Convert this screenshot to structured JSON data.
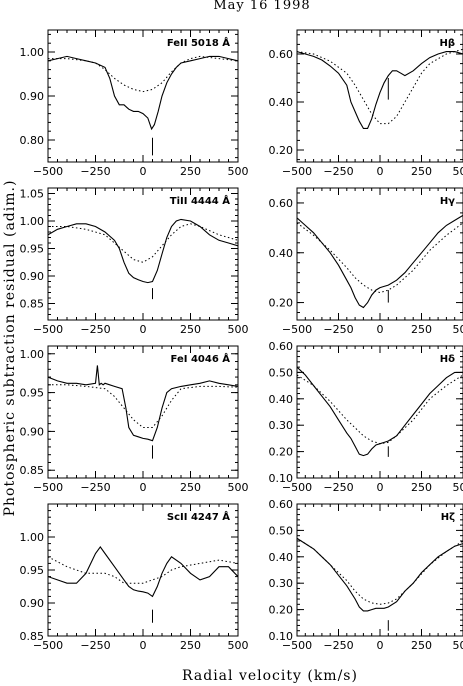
{
  "title": "May 16 1998",
  "xlabel": "Radial velocity (km/s)",
  "ylabel": "Photospheric subtraction residual (adim.)",
  "chart_data": [
    {
      "type": "line",
      "label": "FeII 5018 Å",
      "xlim": [
        -500,
        500
      ],
      "ylim": [
        0.75,
        1.05
      ],
      "yticks": [
        "0.80",
        "0.90",
        "1.00"
      ],
      "ytick_values": [
        0.8,
        0.9,
        1.0
      ],
      "xticks": [
        "−500",
        "−250",
        "0",
        "250",
        "500"
      ],
      "marker_x": 50,
      "marker_y": [
        0.765,
        0.805
      ],
      "series": [
        {
          "style": "solid",
          "x": [
            -500,
            -450,
            -400,
            -350,
            -300,
            -250,
            -200,
            -175,
            -150,
            -125,
            -100,
            -75,
            -50,
            -25,
            0,
            25,
            45,
            60,
            80,
            100,
            125,
            150,
            175,
            200,
            250,
            300,
            350,
            400,
            450,
            500
          ],
          "y": [
            0.98,
            0.985,
            0.99,
            0.985,
            0.98,
            0.975,
            0.965,
            0.94,
            0.9,
            0.88,
            0.88,
            0.87,
            0.865,
            0.865,
            0.86,
            0.85,
            0.825,
            0.835,
            0.865,
            0.9,
            0.93,
            0.95,
            0.965,
            0.975,
            0.98,
            0.985,
            0.99,
            0.99,
            0.985,
            0.98
          ]
        },
        {
          "style": "dotted",
          "x": [
            -500,
            -400,
            -300,
            -250,
            -200,
            -150,
            -100,
            -50,
            0,
            50,
            100,
            150,
            200,
            250,
            300,
            400,
            500
          ],
          "y": [
            0.985,
            0.985,
            0.98,
            0.975,
            0.96,
            0.94,
            0.925,
            0.915,
            0.91,
            0.915,
            0.93,
            0.955,
            0.975,
            0.985,
            0.99,
            0.985,
            0.98
          ]
        }
      ]
    },
    {
      "type": "line",
      "label": "Hβ",
      "xlim": [
        -500,
        500
      ],
      "ylim": [
        0.15,
        0.7
      ],
      "yticks": [
        "0.20",
        "0.40",
        "0.60"
      ],
      "ytick_values": [
        0.2,
        0.4,
        0.6
      ],
      "xticks": [
        "−500",
        "−250",
        "0",
        "250",
        "500"
      ],
      "marker_x": 50,
      "marker_y": [
        0.41,
        0.5
      ],
      "series": [
        {
          "style": "solid",
          "x": [
            -500,
            -450,
            -400,
            -350,
            -300,
            -250,
            -200,
            -175,
            -150,
            -125,
            -100,
            -75,
            -50,
            -25,
            0,
            25,
            50,
            75,
            100,
            125,
            150,
            200,
            250,
            300,
            350,
            400,
            450,
            500
          ],
          "y": [
            0.61,
            0.6,
            0.59,
            0.575,
            0.55,
            0.52,
            0.47,
            0.4,
            0.36,
            0.32,
            0.29,
            0.29,
            0.33,
            0.39,
            0.44,
            0.48,
            0.51,
            0.53,
            0.53,
            0.52,
            0.51,
            0.53,
            0.56,
            0.585,
            0.6,
            0.61,
            0.61,
            0.6
          ]
        },
        {
          "style": "dotted",
          "x": [
            -500,
            -400,
            -300,
            -200,
            -150,
            -100,
            -50,
            0,
            50,
            100,
            150,
            200,
            250,
            300,
            400,
            500
          ],
          "y": [
            0.61,
            0.6,
            0.57,
            0.52,
            0.47,
            0.41,
            0.35,
            0.31,
            0.31,
            0.34,
            0.4,
            0.46,
            0.52,
            0.56,
            0.6,
            0.62
          ]
        }
      ]
    },
    {
      "type": "line",
      "label": "TiII 4444 Å",
      "xlim": [
        -500,
        500
      ],
      "ylim": [
        0.82,
        1.06
      ],
      "yticks": [
        "0.85",
        "0.90",
        "0.95",
        "1.00",
        "1.05"
      ],
      "ytick_values": [
        0.85,
        0.9,
        0.95,
        1.0,
        1.05
      ],
      "xticks": [
        "−500",
        "−250",
        "0",
        "250",
        "500"
      ],
      "marker_x": 50,
      "marker_y": [
        0.858,
        0.878
      ],
      "series": [
        {
          "style": "solid",
          "x": [
            -500,
            -450,
            -400,
            -350,
            -300,
            -250,
            -200,
            -150,
            -125,
            -100,
            -75,
            -50,
            -25,
            0,
            25,
            50,
            75,
            100,
            125,
            150,
            175,
            200,
            250,
            300,
            350,
            400,
            450,
            500
          ],
          "y": [
            0.975,
            0.985,
            0.99,
            0.995,
            0.995,
            0.99,
            0.98,
            0.965,
            0.95,
            0.925,
            0.905,
            0.897,
            0.893,
            0.89,
            0.888,
            0.89,
            0.91,
            0.94,
            0.97,
            0.99,
            1.0,
            1.003,
            1.0,
            0.99,
            0.975,
            0.965,
            0.96,
            0.955
          ]
        },
        {
          "style": "dotted",
          "x": [
            -500,
            -400,
            -300,
            -200,
            -150,
            -100,
            -50,
            0,
            50,
            100,
            150,
            200,
            250,
            300,
            400,
            500
          ],
          "y": [
            0.99,
            0.99,
            0.985,
            0.975,
            0.96,
            0.945,
            0.93,
            0.925,
            0.935,
            0.955,
            0.975,
            0.99,
            0.995,
            0.99,
            0.975,
            0.965
          ]
        }
      ]
    },
    {
      "type": "line",
      "label": "Hγ",
      "xlim": [
        -500,
        500
      ],
      "ylim": [
        0.13,
        0.66
      ],
      "yticks": [
        "0.20",
        "0.40",
        "0.60"
      ],
      "ytick_values": [
        0.2,
        0.4,
        0.6
      ],
      "xticks": [
        "−500",
        "−250",
        "0",
        "250",
        "500"
      ],
      "marker_x": 50,
      "marker_y": [
        0.2,
        0.25
      ],
      "series": [
        {
          "style": "solid",
          "x": [
            -500,
            -450,
            -400,
            -350,
            -300,
            -250,
            -200,
            -175,
            -150,
            -125,
            -100,
            -75,
            -50,
            -25,
            0,
            25,
            50,
            100,
            150,
            200,
            250,
            300,
            350,
            400,
            450,
            500
          ],
          "y": [
            0.54,
            0.51,
            0.48,
            0.44,
            0.4,
            0.35,
            0.29,
            0.26,
            0.22,
            0.19,
            0.18,
            0.2,
            0.23,
            0.25,
            0.26,
            0.265,
            0.27,
            0.29,
            0.32,
            0.36,
            0.4,
            0.44,
            0.48,
            0.51,
            0.53,
            0.55
          ]
        },
        {
          "style": "dotted",
          "x": [
            -500,
            -400,
            -300,
            -200,
            -150,
            -100,
            -50,
            0,
            50,
            100,
            200,
            300,
            400,
            500
          ],
          "y": [
            0.52,
            0.47,
            0.41,
            0.34,
            0.3,
            0.27,
            0.25,
            0.24,
            0.25,
            0.27,
            0.33,
            0.41,
            0.47,
            0.52
          ]
        }
      ]
    },
    {
      "type": "line",
      "label": "FeI 4046 Å",
      "xlim": [
        -500,
        500
      ],
      "ylim": [
        0.84,
        1.01
      ],
      "yticks": [
        "0.85",
        "0.90",
        "0.95",
        "1.00"
      ],
      "ytick_values": [
        0.85,
        0.9,
        0.95,
        1.0
      ],
      "xticks": [
        "−500",
        "−250",
        "0",
        "250",
        "500"
      ],
      "marker_x": 50,
      "marker_y": [
        0.865,
        0.882
      ],
      "series": [
        {
          "style": "solid",
          "x": [
            -500,
            -450,
            -400,
            -350,
            -300,
            -250,
            -240,
            -230,
            -220,
            -210,
            -200,
            -150,
            -110,
            -90,
            -75,
            -50,
            -25,
            0,
            25,
            50,
            75,
            100,
            125,
            150,
            200,
            250,
            300,
            350,
            400,
            450,
            500
          ],
          "y": [
            0.97,
            0.965,
            0.962,
            0.962,
            0.96,
            0.962,
            0.985,
            0.96,
            0.962,
            0.96,
            0.962,
            0.958,
            0.955,
            0.93,
            0.905,
            0.895,
            0.893,
            0.891,
            0.89,
            0.888,
            0.905,
            0.93,
            0.95,
            0.955,
            0.958,
            0.96,
            0.962,
            0.965,
            0.962,
            0.96,
            0.958
          ]
        },
        {
          "style": "dotted",
          "x": [
            -500,
            -400,
            -300,
            -200,
            -150,
            -100,
            -50,
            0,
            50,
            100,
            150,
            200,
            300,
            400,
            500
          ],
          "y": [
            0.96,
            0.96,
            0.958,
            0.955,
            0.945,
            0.93,
            0.915,
            0.905,
            0.905,
            0.92,
            0.94,
            0.955,
            0.958,
            0.958,
            0.957
          ]
        }
      ]
    },
    {
      "type": "line",
      "label": "Hδ",
      "xlim": [
        -500,
        500
      ],
      "ylim": [
        0.1,
        0.6
      ],
      "yticks": [
        "0.10",
        "0.20",
        "0.30",
        "0.40",
        "0.50",
        "0.60"
      ],
      "ytick_values": [
        0.1,
        0.2,
        0.3,
        0.4,
        0.5,
        0.6
      ],
      "xticks": [
        "−500",
        "−250",
        "0",
        "250",
        "500"
      ],
      "marker_x": 50,
      "marker_y": [
        0.18,
        0.22
      ],
      "series": [
        {
          "style": "solid",
          "x": [
            -500,
            -450,
            -400,
            -350,
            -300,
            -250,
            -200,
            -175,
            -150,
            -125,
            -100,
            -75,
            -50,
            -25,
            0,
            25,
            50,
            100,
            150,
            200,
            250,
            300,
            350,
            400,
            450,
            500
          ],
          "y": [
            0.52,
            0.49,
            0.45,
            0.41,
            0.37,
            0.32,
            0.27,
            0.25,
            0.22,
            0.19,
            0.185,
            0.19,
            0.21,
            0.225,
            0.23,
            0.235,
            0.24,
            0.26,
            0.3,
            0.34,
            0.38,
            0.42,
            0.45,
            0.48,
            0.5,
            0.5
          ]
        },
        {
          "style": "dotted",
          "x": [
            -500,
            -400,
            -300,
            -200,
            -150,
            -100,
            -50,
            0,
            50,
            100,
            200,
            300,
            400,
            500
          ],
          "y": [
            0.49,
            0.45,
            0.39,
            0.32,
            0.29,
            0.26,
            0.24,
            0.23,
            0.235,
            0.26,
            0.32,
            0.4,
            0.45,
            0.49
          ]
        }
      ]
    },
    {
      "type": "line",
      "label": "ScII 4247 Å",
      "xlim": [
        -500,
        500
      ],
      "ylim": [
        0.85,
        1.05
      ],
      "yticks": [
        "0.85",
        "0.90",
        "0.95",
        "1.00"
      ],
      "ytick_values": [
        0.85,
        0.9,
        0.95,
        1.0
      ],
      "xticks": [
        "−500",
        "−250",
        "0",
        "250",
        "500"
      ],
      "marker_x": 50,
      "marker_y": [
        0.87,
        0.89
      ],
      "series": [
        {
          "style": "solid",
          "x": [
            -500,
            -450,
            -400,
            -350,
            -300,
            -250,
            -225,
            -200,
            -150,
            -100,
            -75,
            -50,
            -25,
            0,
            25,
            50,
            75,
            100,
            125,
            150,
            200,
            250,
            300,
            350,
            400,
            450,
            500
          ],
          "y": [
            0.94,
            0.935,
            0.93,
            0.93,
            0.945,
            0.975,
            0.985,
            0.975,
            0.955,
            0.935,
            0.925,
            0.92,
            0.918,
            0.917,
            0.915,
            0.91,
            0.925,
            0.945,
            0.96,
            0.97,
            0.96,
            0.945,
            0.935,
            0.94,
            0.955,
            0.955,
            0.94
          ]
        },
        {
          "style": "dotted",
          "x": [
            -500,
            -400,
            -300,
            -250,
            -200,
            -150,
            -100,
            -50,
            0,
            50,
            100,
            150,
            200,
            300,
            400,
            500
          ],
          "y": [
            0.97,
            0.955,
            0.945,
            0.945,
            0.945,
            0.94,
            0.93,
            0.93,
            0.93,
            0.935,
            0.94,
            0.95,
            0.955,
            0.96,
            0.965,
            0.96
          ]
        }
      ]
    },
    {
      "type": "line",
      "label": "Hζ",
      "xlim": [
        -500,
        500
      ],
      "ylim": [
        0.1,
        0.6
      ],
      "yticks": [
        "0.10",
        "0.20",
        "0.30",
        "0.40",
        "0.50",
        "0.60"
      ],
      "ytick_values": [
        0.1,
        0.2,
        0.3,
        0.4,
        0.5,
        0.6
      ],
      "xticks": [
        "−500",
        "−250",
        "0",
        "250",
        "500"
      ],
      "marker_x": 50,
      "marker_y": [
        0.12,
        0.16
      ],
      "series": [
        {
          "style": "solid",
          "x": [
            -500,
            -450,
            -400,
            -350,
            -300,
            -250,
            -200,
            -150,
            -125,
            -100,
            -75,
            -50,
            -25,
            0,
            25,
            50,
            100,
            150,
            200,
            250,
            300,
            350,
            400,
            450,
            500
          ],
          "y": [
            0.47,
            0.45,
            0.43,
            0.4,
            0.37,
            0.33,
            0.29,
            0.24,
            0.21,
            0.195,
            0.195,
            0.2,
            0.205,
            0.205,
            0.205,
            0.21,
            0.23,
            0.27,
            0.3,
            0.34,
            0.37,
            0.4,
            0.42,
            0.44,
            0.45
          ]
        },
        {
          "style": "dotted",
          "x": [
            -500,
            -400,
            -300,
            -200,
            -150,
            -100,
            -50,
            0,
            50,
            100,
            200,
            300,
            400,
            500
          ],
          "y": [
            0.47,
            0.43,
            0.37,
            0.31,
            0.27,
            0.24,
            0.225,
            0.22,
            0.225,
            0.24,
            0.3,
            0.37,
            0.42,
            0.46
          ]
        }
      ]
    }
  ]
}
